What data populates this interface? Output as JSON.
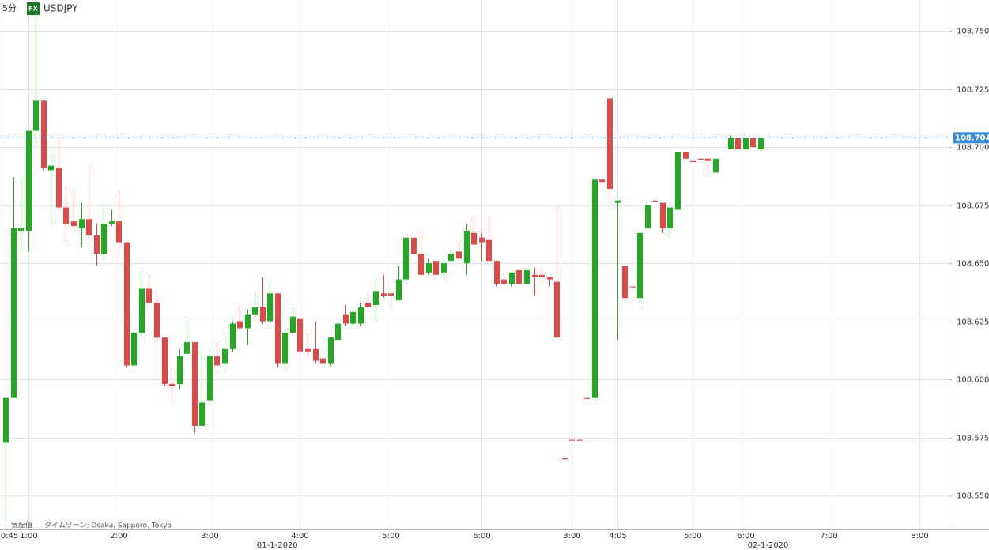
{
  "header": {
    "interval": "5分",
    "badge": "FX",
    "symbol": "USDJPY"
  },
  "footer": {
    "quote": "気配値",
    "timezone": "タイムゾーン: Osaka, Sapporo, Tokyo"
  },
  "chart_data": {
    "type": "candlestick",
    "categories": [
      "0:45",
      null,
      null,
      "1:00",
      null,
      null,
      null,
      null,
      null,
      null,
      null,
      null,
      null,
      null,
      null,
      "2:00",
      null,
      null,
      null,
      null,
      null,
      null,
      null,
      null,
      null,
      null,
      null,
      "3:00",
      null,
      null,
      null,
      null,
      null,
      null,
      null,
      null,
      null,
      null,
      null,
      "4:00",
      null,
      null,
      null,
      null,
      null,
      null,
      null,
      null,
      null,
      null,
      null,
      "5:00",
      null,
      null,
      null,
      null,
      null,
      null,
      null,
      null,
      null,
      null,
      null,
      "6:00",
      null,
      null,
      null,
      null,
      null,
      null,
      null,
      null,
      null,
      null,
      null,
      "3:00",
      null,
      null,
      null,
      null,
      null,
      "4:05",
      null,
      null,
      null,
      null,
      null,
      null,
      null,
      null,
      null,
      "5:00",
      null,
      null,
      null,
      null,
      null,
      null,
      "6:00",
      null,
      null,
      null,
      null,
      null,
      null,
      null,
      null,
      null,
      null,
      "7:00",
      null,
      null,
      null,
      null,
      null,
      null,
      null,
      null,
      null,
      null,
      null,
      "8:00",
      null,
      null,
      null
    ],
    "date_labels": [
      "01-1-2020",
      "02-1-2020"
    ],
    "open": [
      108.573,
      108.592,
      108.664,
      108.664,
      108.707,
      108.72,
      108.69,
      108.691,
      108.674,
      108.668,
      108.665,
      108.669,
      108.662,
      108.654,
      108.667,
      108.668,
      108.659,
      108.606,
      108.62,
      108.639,
      108.633,
      108.618,
      108.598,
      108.598,
      108.611,
      108.616,
      108.58,
      108.591,
      108.61,
      108.607,
      108.613,
      108.625,
      108.622,
      108.628,
      108.631,
      108.625,
      108.637,
      108.607,
      108.62,
      108.626,
      108.613,
      108.613,
      108.609,
      108.607,
      108.617,
      108.628,
      108.624,
      108.624,
      108.633,
      108.632,
      108.637,
      108.637,
      108.634,
      108.643,
      108.661,
      108.654,
      108.646,
      108.651,
      108.646,
      108.651,
      108.655,
      108.65,
      108.663,
      108.661,
      108.66,
      108.651,
      108.643,
      108.641,
      108.647,
      108.641,
      108.645,
      108.645,
      108.644,
      108.642,
      108.566,
      108.574,
      108.574,
      108.592,
      108.592,
      108.686,
      108.721,
      108.676,
      108.649,
      108.64,
      108.635,
      108.665,
      108.677,
      108.676,
      108.665,
      108.673,
      108.698,
      108.694,
      108.695,
      108.695,
      108.689,
      null,
      108.699,
      108.704,
      108.699,
      108.704,
      108.699,
      null,
      null,
      null,
      null,
      null,
      null,
      null,
      null,
      null,
      null,
      null,
      null,
      null,
      null,
      null,
      null,
      null,
      null,
      null,
      null,
      null,
      null,
      null,
      null
    ],
    "high": [
      108.592,
      108.687,
      108.687,
      108.707,
      108.76,
      108.72,
      108.697,
      108.706,
      108.683,
      108.681,
      108.676,
      108.692,
      108.667,
      108.676,
      108.673,
      108.681,
      108.659,
      108.62,
      108.647,
      108.645,
      108.636,
      108.618,
      108.605,
      108.613,
      108.625,
      108.616,
      108.612,
      108.613,
      108.616,
      108.62,
      108.625,
      108.632,
      108.63,
      108.637,
      108.644,
      108.642,
      108.637,
      108.621,
      108.631,
      108.626,
      108.62,
      108.625,
      108.609,
      108.618,
      108.624,
      108.632,
      108.629,
      108.633,
      108.637,
      108.643,
      108.645,
      108.637,
      108.649,
      108.661,
      108.661,
      108.664,
      108.652,
      108.651,
      108.653,
      108.656,
      108.659,
      108.667,
      108.67,
      108.663,
      108.67,
      108.651,
      108.646,
      108.646,
      108.648,
      108.648,
      108.648,
      108.648,
      108.644,
      108.675,
      108.566,
      108.574,
      108.574,
      108.592,
      108.686,
      108.686,
      108.721,
      108.677,
      108.649,
      108.64,
      108.663,
      108.675,
      108.677,
      108.676,
      108.674,
      108.698,
      108.698,
      108.694,
      108.695,
      108.695,
      108.695,
      null,
      108.705,
      108.704,
      108.704,
      108.704,
      108.704,
      null,
      null,
      null,
      null,
      null,
      null,
      null,
      null,
      null,
      null,
      null,
      null,
      null,
      null,
      null,
      null,
      null,
      null,
      null,
      null,
      null,
      null,
      null,
      null
    ],
    "low": [
      108.539,
      108.592,
      108.655,
      108.655,
      108.7,
      108.69,
      108.667,
      108.672,
      108.659,
      108.665,
      108.657,
      108.658,
      108.649,
      108.651,
      108.666,
      108.656,
      108.605,
      108.605,
      108.618,
      108.632,
      108.616,
      108.597,
      108.59,
      108.596,
      108.611,
      108.577,
      108.58,
      108.59,
      108.605,
      108.605,
      108.612,
      108.621,
      108.615,
      108.627,
      108.624,
      108.624,
      108.605,
      108.603,
      108.62,
      108.611,
      108.61,
      108.607,
      108.607,
      108.606,
      108.617,
      108.623,
      108.623,
      108.623,
      108.631,
      108.625,
      108.635,
      108.63,
      108.634,
      108.641,
      108.654,
      108.644,
      108.645,
      108.643,
      108.643,
      108.65,
      108.652,
      108.645,
      108.658,
      108.651,
      108.65,
      108.64,
      108.64,
      108.64,
      108.641,
      108.641,
      108.636,
      108.643,
      108.64,
      108.618,
      108.566,
      108.574,
      108.574,
      108.592,
      108.59,
      108.685,
      108.676,
      108.617,
      108.635,
      108.64,
      108.632,
      108.665,
      108.677,
      108.663,
      108.661,
      108.673,
      108.695,
      108.694,
      108.695,
      108.689,
      108.689,
      null,
      108.699,
      108.699,
      108.699,
      108.7,
      108.699,
      null,
      null,
      null,
      null,
      null,
      null,
      null,
      null,
      null,
      null,
      null,
      null,
      null,
      null,
      null,
      null,
      null,
      null,
      null,
      null,
      null,
      null,
      null,
      null
    ],
    "close": [
      108.592,
      108.665,
      108.665,
      108.707,
      108.72,
      108.691,
      108.692,
      108.674,
      108.667,
      108.666,
      108.669,
      108.662,
      108.654,
      108.667,
      108.668,
      108.659,
      108.606,
      108.62,
      108.639,
      108.633,
      108.618,
      108.598,
      108.597,
      108.61,
      108.616,
      108.58,
      108.59,
      108.61,
      108.606,
      108.613,
      108.624,
      108.622,
      108.628,
      108.631,
      108.625,
      108.637,
      108.607,
      108.62,
      108.627,
      108.612,
      108.612,
      108.608,
      108.607,
      108.618,
      108.624,
      108.624,
      108.629,
      108.631,
      108.631,
      108.638,
      108.636,
      108.636,
      108.643,
      108.661,
      108.654,
      108.645,
      108.65,
      108.645,
      108.65,
      108.654,
      108.652,
      108.664,
      108.658,
      108.659,
      108.651,
      108.641,
      108.641,
      108.646,
      108.641,
      108.647,
      108.644,
      108.644,
      108.643,
      108.618,
      108.566,
      108.574,
      108.574,
      108.592,
      108.686,
      108.685,
      108.682,
      108.677,
      108.635,
      108.64,
      108.663,
      108.675,
      108.677,
      108.665,
      108.674,
      108.698,
      108.695,
      108.694,
      108.695,
      108.694,
      108.695,
      null,
      108.704,
      108.699,
      108.704,
      108.7,
      108.704,
      null,
      null,
      null,
      null,
      null,
      null,
      null,
      null,
      null,
      null,
      null,
      null,
      null,
      null,
      null,
      null,
      null,
      null,
      null,
      null,
      null,
      null,
      null,
      null
    ],
    "up_color": "#1faa1f",
    "down_color": "#e04a46",
    "ylim": [
      108.5354,
      108.7633
    ],
    "yticks": [
      {
        "value": 108.55,
        "label": "108.550"
      },
      {
        "value": 108.575,
        "label": "108.575"
      },
      {
        "value": 108.6,
        "label": "108.600"
      },
      {
        "value": 108.625,
        "label": "108.625"
      },
      {
        "value": 108.65,
        "label": "108.650"
      },
      {
        "value": 108.675,
        "label": "108.675"
      },
      {
        "value": 108.7,
        "label": "108.700"
      },
      {
        "value": 108.725,
        "label": "108.725"
      },
      {
        "value": 108.75,
        "label": "108.750"
      }
    ],
    "last_price": {
      "value": 108.704,
      "label": "108.704"
    },
    "last_price_color": "#3a8ad6",
    "grid": true
  }
}
